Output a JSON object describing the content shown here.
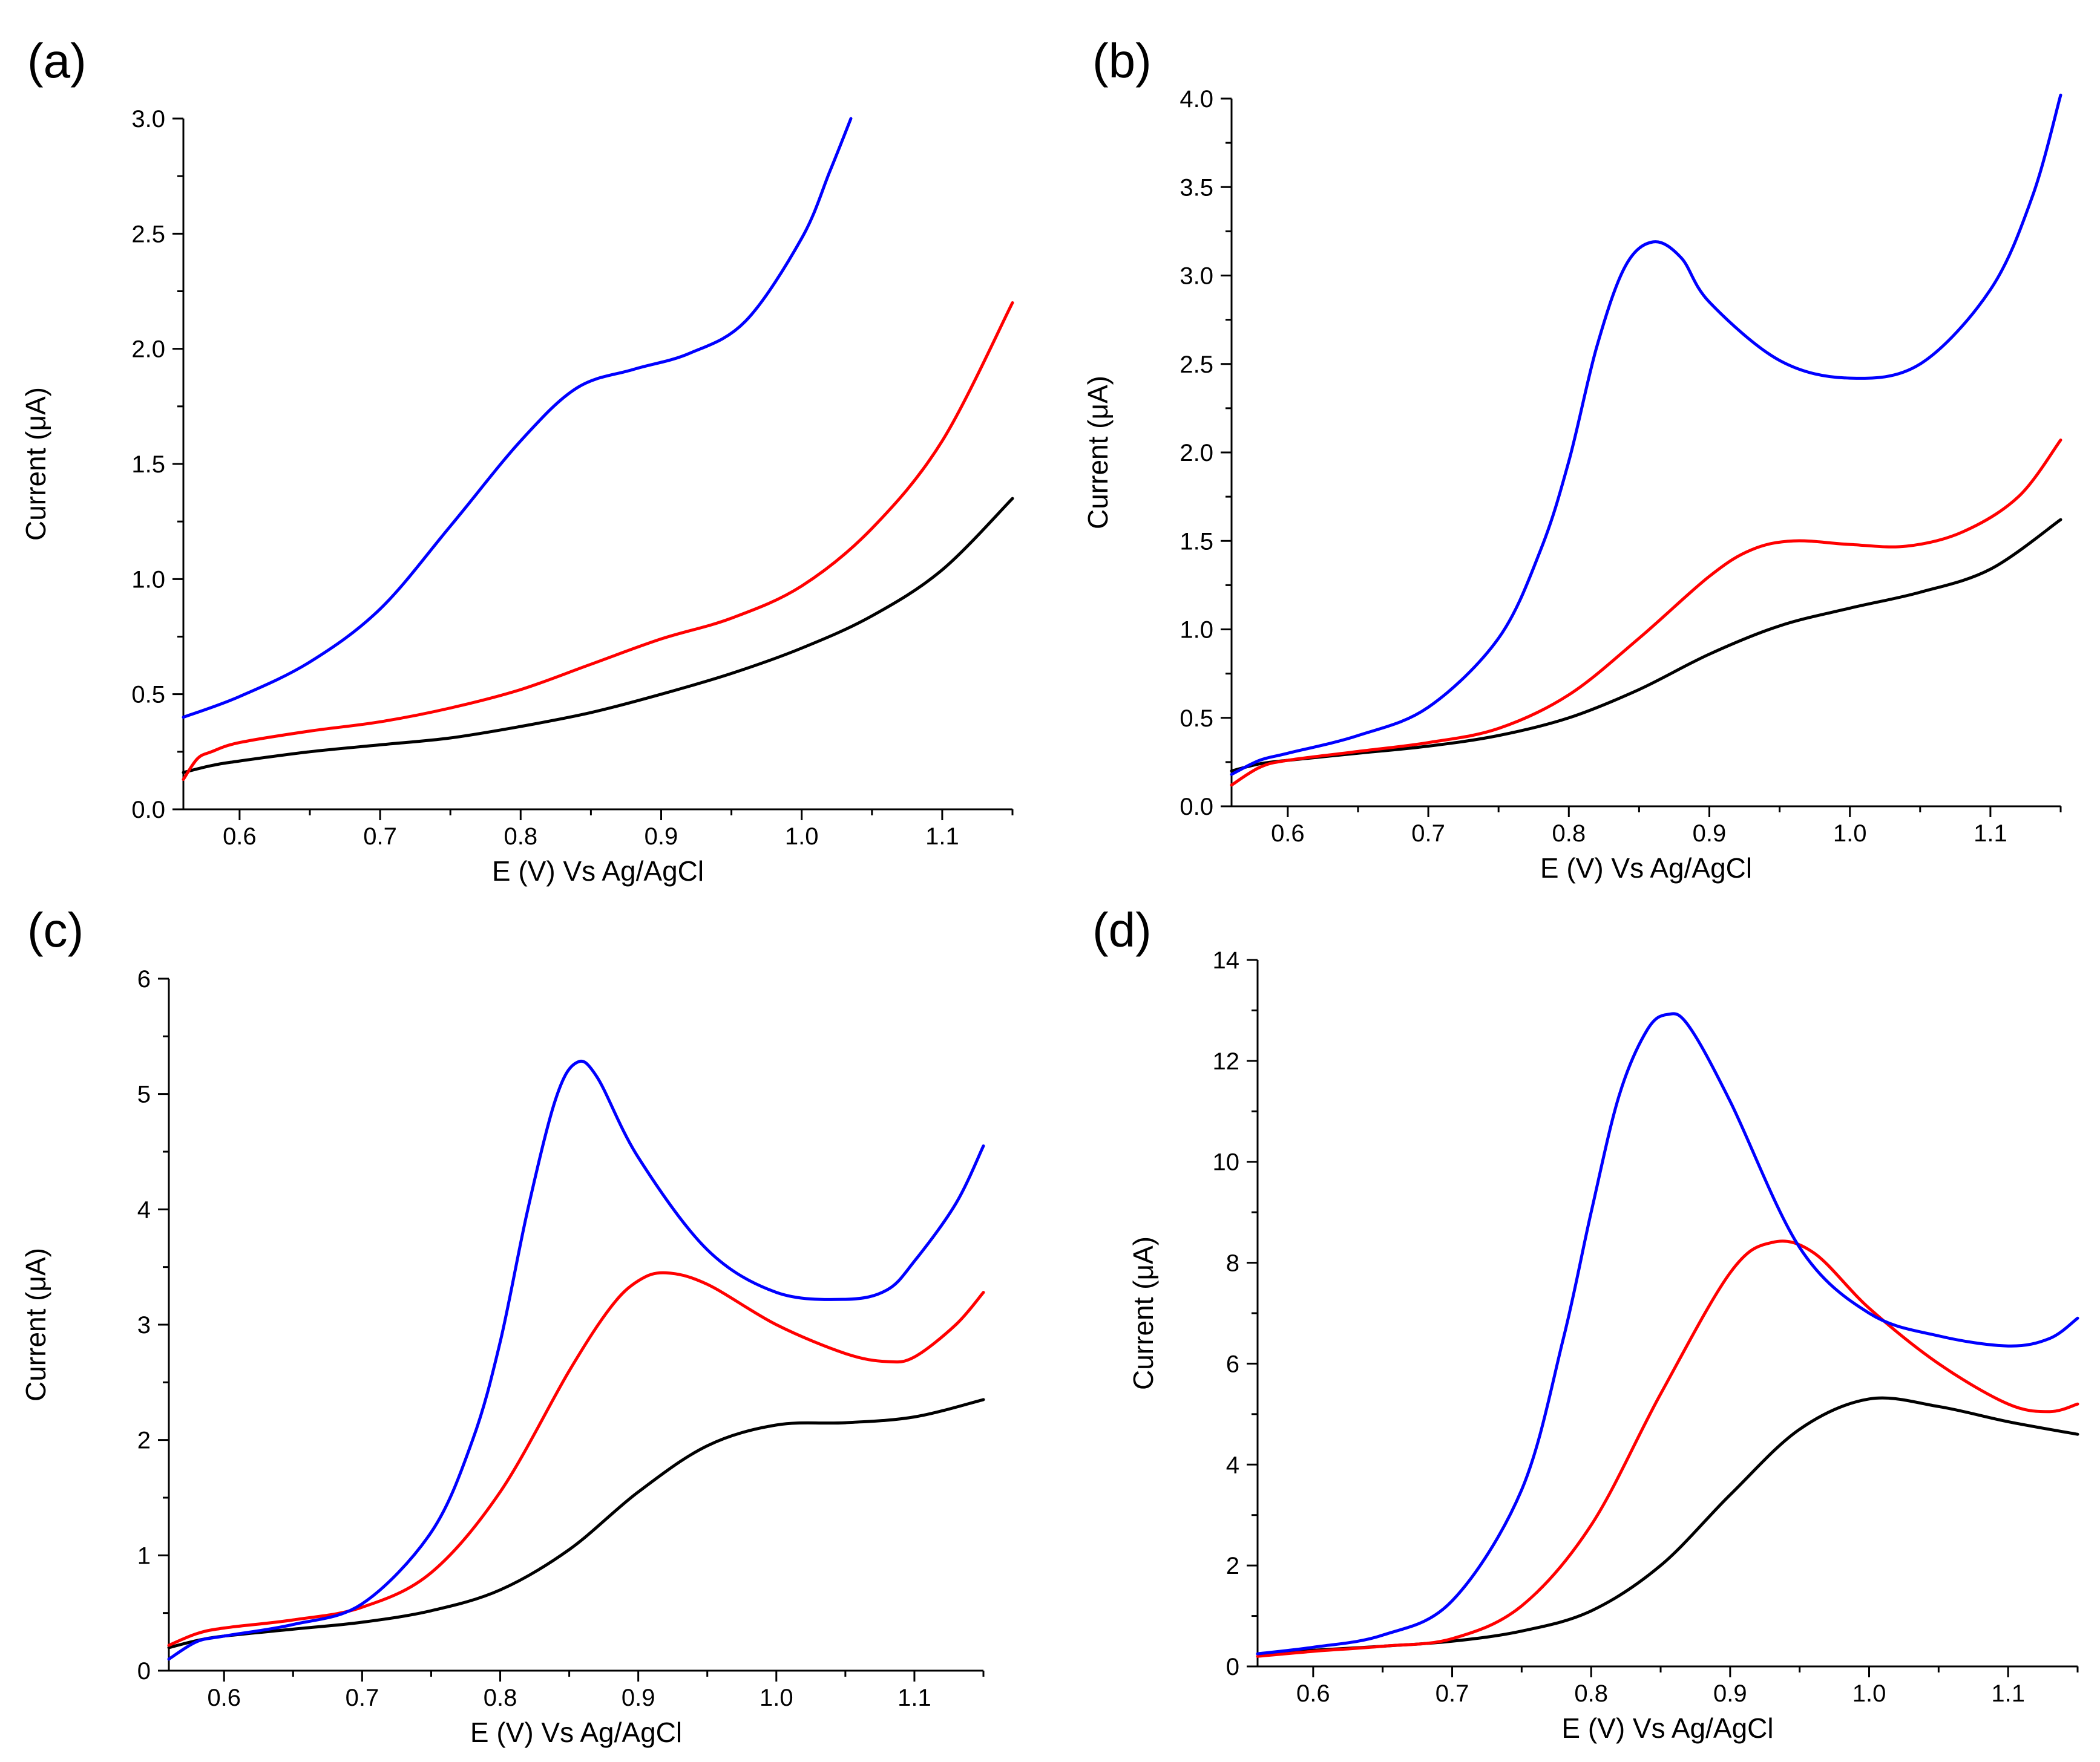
{
  "chart_data": [
    {
      "panel_label": "(a)",
      "type": "line",
      "xlabel": "E (V) Vs Ag/AgCl",
      "ylabel": "Current (μA)",
      "xlim": [
        0.56,
        1.15
      ],
      "ylim": [
        0,
        3.0
      ],
      "xticks": [
        0.6,
        0.7,
        0.8,
        0.9,
        1.0,
        1.1
      ],
      "xtick_labels": [
        "0.6",
        "0.7",
        "0.8",
        "0.9",
        "1.0",
        "1.1"
      ],
      "yticks": [
        0,
        0.5,
        1.0,
        1.5,
        2.0,
        2.5,
        3.0
      ],
      "ytick_labels": [
        "0.0",
        "0.5",
        "1.0",
        "1.5",
        "2.0",
        "2.5",
        "3.0"
      ],
      "series": [
        {
          "name": "black",
          "color": "#000000",
          "x": [
            0.56,
            0.58,
            0.6,
            0.65,
            0.7,
            0.75,
            0.8,
            0.85,
            0.9,
            0.95,
            1.0,
            1.05,
            1.1,
            1.15
          ],
          "values": [
            0.16,
            0.19,
            0.21,
            0.25,
            0.28,
            0.31,
            0.36,
            0.42,
            0.5,
            0.59,
            0.7,
            0.84,
            1.04,
            1.35
          ]
        },
        {
          "name": "red",
          "color": "#ff0000",
          "x": [
            0.56,
            0.57,
            0.58,
            0.6,
            0.65,
            0.7,
            0.75,
            0.8,
            0.85,
            0.9,
            0.95,
            1.0,
            1.05,
            1.1,
            1.15
          ],
          "values": [
            0.13,
            0.22,
            0.25,
            0.29,
            0.34,
            0.38,
            0.44,
            0.52,
            0.63,
            0.74,
            0.83,
            0.97,
            1.22,
            1.6,
            2.2
          ]
        },
        {
          "name": "blue",
          "color": "#0000ff",
          "x": [
            0.56,
            0.6,
            0.65,
            0.7,
            0.75,
            0.8,
            0.84,
            0.88,
            0.92,
            0.96,
            1.0,
            1.02,
            1.035
          ],
          "values": [
            0.4,
            0.49,
            0.64,
            0.87,
            1.23,
            1.6,
            1.83,
            1.91,
            1.98,
            2.12,
            2.48,
            2.77,
            3.0
          ]
        }
      ]
    },
    {
      "panel_label": "(b)",
      "type": "line",
      "xlabel": "E (V) Vs Ag/AgCl",
      "ylabel": "Current (μA)",
      "xlim": [
        0.56,
        1.15
      ],
      "ylim": [
        0,
        4.0
      ],
      "xticks": [
        0.6,
        0.7,
        0.8,
        0.9,
        1.0,
        1.1
      ],
      "xtick_labels": [
        "0.6",
        "0.7",
        "0.8",
        "0.9",
        "1.0",
        "1.1"
      ],
      "yticks": [
        0,
        0.5,
        1.0,
        1.5,
        2.0,
        2.5,
        3.0,
        3.5,
        4.0
      ],
      "ytick_labels": [
        "0.0",
        "0.5",
        "1.0",
        "1.5",
        "2.0",
        "2.5",
        "3.0",
        "3.5",
        "4.0"
      ],
      "series": [
        {
          "name": "black",
          "color": "#000000",
          "x": [
            0.56,
            0.58,
            0.6,
            0.65,
            0.7,
            0.75,
            0.8,
            0.85,
            0.9,
            0.95,
            1.0,
            1.05,
            1.1,
            1.15
          ],
          "values": [
            0.2,
            0.24,
            0.26,
            0.3,
            0.34,
            0.4,
            0.5,
            0.66,
            0.86,
            1.02,
            1.12,
            1.21,
            1.34,
            1.62
          ]
        },
        {
          "name": "red",
          "color": "#ff0000",
          "x": [
            0.56,
            0.58,
            0.6,
            0.65,
            0.7,
            0.75,
            0.8,
            0.85,
            0.9,
            0.93,
            0.96,
            1.0,
            1.04,
            1.08,
            1.12,
            1.15
          ],
          "values": [
            0.12,
            0.22,
            0.26,
            0.31,
            0.36,
            0.44,
            0.63,
            0.95,
            1.3,
            1.45,
            1.5,
            1.48,
            1.47,
            1.55,
            1.75,
            2.07
          ]
        },
        {
          "name": "blue",
          "color": "#0000ff",
          "x": [
            0.56,
            0.58,
            0.6,
            0.65,
            0.7,
            0.75,
            0.78,
            0.8,
            0.82,
            0.84,
            0.86,
            0.88,
            0.9,
            0.95,
            1.0,
            1.05,
            1.1,
            1.13,
            1.15
          ],
          "values": [
            0.18,
            0.26,
            0.3,
            0.4,
            0.56,
            0.95,
            1.45,
            1.95,
            2.6,
            3.05,
            3.19,
            3.1,
            2.85,
            2.52,
            2.42,
            2.5,
            2.92,
            3.45,
            4.02
          ]
        }
      ]
    },
    {
      "panel_label": "(c)",
      "type": "line",
      "xlabel": "E (V) Vs Ag/AgCl",
      "ylabel": "Current (μA)",
      "xlim": [
        0.56,
        1.15
      ],
      "ylim": [
        0,
        6
      ],
      "xticks": [
        0.6,
        0.7,
        0.8,
        0.9,
        1.0,
        1.1
      ],
      "xtick_labels": [
        "0.6",
        "0.7",
        "0.8",
        "0.9",
        "1.0",
        "1.1"
      ],
      "yticks": [
        0,
        1,
        2,
        3,
        4,
        5,
        6
      ],
      "ytick_labels": [
        "0",
        "1",
        "2",
        "3",
        "4",
        "5",
        "6"
      ],
      "series": [
        {
          "name": "black",
          "color": "#000000",
          "x": [
            0.56,
            0.58,
            0.6,
            0.65,
            0.7,
            0.75,
            0.8,
            0.85,
            0.9,
            0.95,
            1.0,
            1.05,
            1.1,
            1.15
          ],
          "values": [
            0.2,
            0.26,
            0.3,
            0.36,
            0.42,
            0.52,
            0.7,
            1.05,
            1.55,
            1.95,
            2.13,
            2.15,
            2.2,
            2.35
          ]
        },
        {
          "name": "red",
          "color": "#ff0000",
          "x": [
            0.56,
            0.58,
            0.6,
            0.65,
            0.7,
            0.75,
            0.8,
            0.85,
            0.88,
            0.9,
            0.92,
            0.95,
            1.0,
            1.05,
            1.08,
            1.1,
            1.13,
            1.15
          ],
          "values": [
            0.22,
            0.32,
            0.37,
            0.44,
            0.55,
            0.85,
            1.55,
            2.6,
            3.15,
            3.38,
            3.45,
            3.35,
            3.0,
            2.75,
            2.68,
            2.72,
            3.0,
            3.28
          ]
        },
        {
          "name": "blue",
          "color": "#0000ff",
          "x": [
            0.56,
            0.58,
            0.6,
            0.65,
            0.7,
            0.75,
            0.78,
            0.8,
            0.82,
            0.84,
            0.855,
            0.87,
            0.9,
            0.95,
            1.0,
            1.05,
            1.08,
            1.1,
            1.13,
            1.15
          ],
          "values": [
            0.1,
            0.25,
            0.3,
            0.4,
            0.58,
            1.2,
            2.0,
            2.85,
            4.0,
            4.95,
            5.27,
            5.15,
            4.45,
            3.65,
            3.28,
            3.22,
            3.3,
            3.55,
            4.05,
            4.55
          ]
        }
      ]
    },
    {
      "panel_label": "(d)",
      "type": "line",
      "xlabel": "E (V) Vs Ag/AgCl",
      "ylabel": "Current (μA)",
      "xlim": [
        0.56,
        1.15
      ],
      "ylim": [
        0,
        14
      ],
      "xticks": [
        0.6,
        0.7,
        0.8,
        0.9,
        1.0,
        1.1
      ],
      "xtick_labels": [
        "0.6",
        "0.7",
        "0.8",
        "0.9",
        "1.0",
        "1.1"
      ],
      "yticks": [
        0,
        2,
        4,
        6,
        8,
        10,
        12,
        14
      ],
      "ytick_labels": [
        "0",
        "2",
        "4",
        "6",
        "8",
        "10",
        "12",
        "14"
      ],
      "series": [
        {
          "name": "black",
          "color": "#000000",
          "x": [
            0.56,
            0.6,
            0.65,
            0.7,
            0.75,
            0.8,
            0.85,
            0.9,
            0.95,
            1.0,
            1.05,
            1.1,
            1.15
          ],
          "values": [
            0.25,
            0.32,
            0.4,
            0.5,
            0.7,
            1.1,
            2.0,
            3.4,
            4.7,
            5.3,
            5.15,
            4.85,
            4.6
          ]
        },
        {
          "name": "red",
          "color": "#ff0000",
          "x": [
            0.56,
            0.6,
            0.65,
            0.7,
            0.75,
            0.8,
            0.85,
            0.9,
            0.93,
            0.96,
            1.0,
            1.05,
            1.1,
            1.13,
            1.15
          ],
          "values": [
            0.2,
            0.3,
            0.4,
            0.55,
            1.2,
            2.8,
            5.4,
            7.8,
            8.4,
            8.2,
            7.1,
            6.0,
            5.2,
            5.05,
            5.2
          ]
        },
        {
          "name": "blue",
          "color": "#0000ff",
          "x": [
            0.56,
            0.6,
            0.65,
            0.7,
            0.75,
            0.78,
            0.8,
            0.82,
            0.84,
            0.855,
            0.87,
            0.9,
            0.95,
            1.0,
            1.05,
            1.1,
            1.13,
            1.15
          ],
          "values": [
            0.25,
            0.38,
            0.62,
            1.3,
            3.5,
            6.5,
            9.0,
            11.3,
            12.6,
            12.92,
            12.7,
            11.2,
            8.3,
            7.0,
            6.55,
            6.35,
            6.5,
            6.9
          ]
        }
      ]
    }
  ]
}
